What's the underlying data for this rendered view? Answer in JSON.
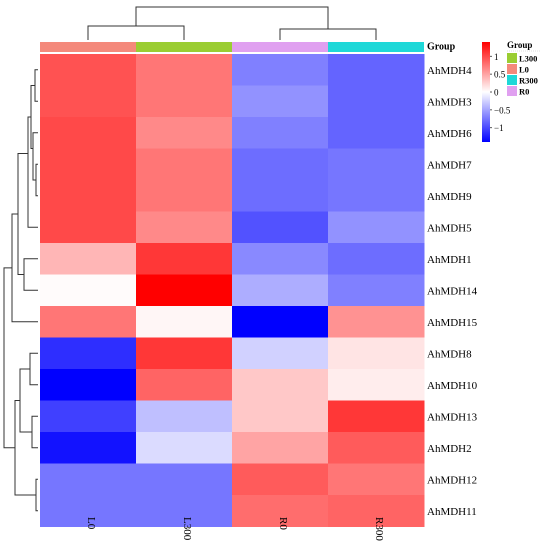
{
  "chart_data": {
    "type": "heatmap",
    "title": "",
    "columns": [
      {
        "label": "L0",
        "group": "L0"
      },
      {
        "label": "L300",
        "group": "L300"
      },
      {
        "label": "R0",
        "group": "R0"
      },
      {
        "label": "R300",
        "group": "R300"
      }
    ],
    "rows": [
      "AhMDH4",
      "AhMDH3",
      "AhMDH6",
      "AhMDH7",
      "AhMDH9",
      "AhMDH5",
      "AhMDH1",
      "AhMDH14",
      "AhMDH15",
      "AhMDH8",
      "AhMDH10",
      "AhMDH13",
      "AhMDH2",
      "AhMDH12",
      "AhMDH11"
    ],
    "values": [
      [
        0.95,
        0.75,
        -0.7,
        -0.85
      ],
      [
        0.95,
        0.75,
        -0.6,
        -0.85
      ],
      [
        1.0,
        0.65,
        -0.7,
        -0.85
      ],
      [
        1.0,
        0.75,
        -0.8,
        -0.75
      ],
      [
        1.0,
        0.75,
        -0.8,
        -0.75
      ],
      [
        1.0,
        0.65,
        -0.95,
        -0.6
      ],
      [
        0.4,
        1.1,
        -0.65,
        -0.8
      ],
      [
        0.02,
        1.4,
        -0.45,
        -0.7
      ],
      [
        0.75,
        0.05,
        -1.4,
        0.6
      ],
      [
        -1.15,
        1.1,
        -0.25,
        0.15
      ],
      [
        -1.4,
        0.85,
        0.3,
        0.1
      ],
      [
        -1.05,
        -0.35,
        0.3,
        1.1
      ],
      [
        -1.3,
        -0.2,
        0.5,
        0.9
      ],
      [
        -0.75,
        -0.75,
        0.9,
        0.75
      ],
      [
        -0.75,
        -0.75,
        0.8,
        0.85
      ]
    ],
    "color_scale": {
      "min": -1.4,
      "max": 1.4,
      "low_color": "#0000ff",
      "mid_color": "#ffffff",
      "high_color": "#ff0000",
      "ticks": [
        1,
        0.5,
        0,
        -0.5,
        -1
      ],
      "tick_labels": [
        "1",
        "0.5",
        "0",
        "−0.5",
        "−1"
      ]
    },
    "group_annotation": {
      "title": "Group",
      "legend_title": "Group",
      "legend": [
        {
          "label": "L300",
          "color": "#9acd32"
        },
        {
          "label": "L0",
          "color": "#f4897b"
        },
        {
          "label": "R300",
          "color": "#1ed8d8"
        },
        {
          "label": "R0",
          "color": "#e0a0f0"
        }
      ],
      "colors": {
        "L0": "#f4897b",
        "L300": "#9acd32",
        "R0": "#e0a0f0",
        "R300": "#1ed8d8"
      }
    },
    "column_dendrogram": {
      "merges": [
        [
          2,
          3
        ],
        [
          0,
          1
        ],
        [
          "L0+L300",
          "R0+R300"
        ]
      ]
    },
    "row_dendrogram": {
      "clusters": [
        [
          "AhMDH4",
          "AhMDH3",
          "AhMDH6",
          "AhMDH7",
          "AhMDH9",
          "AhMDH5"
        ],
        [
          "AhMDH1",
          "AhMDH14"
        ],
        [
          "AhMDH15"
        ],
        [
          "AhMDH8",
          "AhMDH10"
        ],
        [
          "AhMDH13",
          "AhMDH2"
        ],
        [
          "AhMDH12",
          "AhMDH11"
        ]
      ]
    }
  }
}
